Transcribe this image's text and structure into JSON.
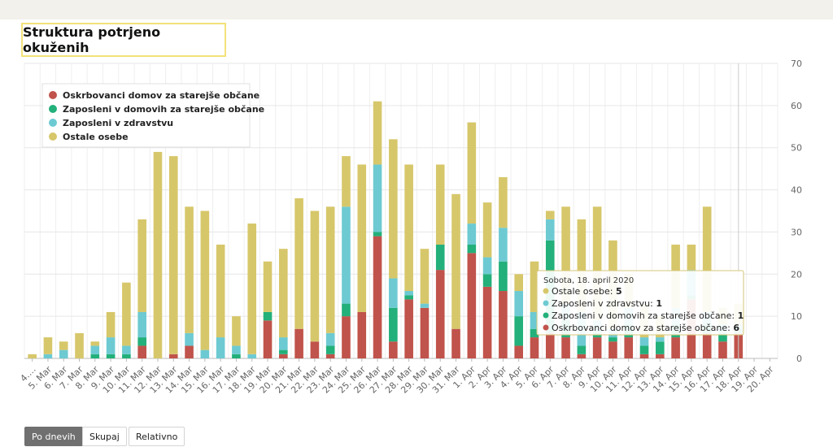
{
  "title": "Struktura potrjeno okuženih",
  "buttons": [
    "Po dnevih",
    "Skupaj",
    "Relativno"
  ],
  "active_button": 0,
  "colors": {
    "oskrbovanci": "#c0534b",
    "zaposleni_domovi": "#23b07a",
    "zdravstvo": "#6dcad2",
    "ostale": "#d7c76b",
    "title_border": "#f2e27a"
  },
  "chart_data": {
    "type": "bar",
    "stacked": true,
    "categories": [
      "4. Mar",
      "5. Mar",
      "6. Mar",
      "7. Mar",
      "8. Mar",
      "9. Mar",
      "10. Mar",
      "11. Mar",
      "12. Mar",
      "13. Mar",
      "14. Mar",
      "15. Mar",
      "16. Mar",
      "17. Mar",
      "18. Mar",
      "19. Mar",
      "20. Mar",
      "21. Mar",
      "22. Mar",
      "23. Mar",
      "24. Mar",
      "25. Mar",
      "26. Mar",
      "27. Mar",
      "28. Mar",
      "29. Mar",
      "30. Mar",
      "31. Mar",
      "1. Apr",
      "2. Apr",
      "3. Apr",
      "4. Apr",
      "5. Apr",
      "6. Apr",
      "7. Apr",
      "8. Apr",
      "9. Apr",
      "10. Apr",
      "11. Apr",
      "12. Apr",
      "13. Apr",
      "14. Apr",
      "15. Apr",
      "16. Apr",
      "17. Apr",
      "18. Apr",
      "19. Apr",
      "20. Apr"
    ],
    "tick_labels": [
      "4.…",
      "5. Mar",
      "6. Mar",
      "7. Mar",
      "8. Mar",
      "9. Mar",
      "10. Mar",
      "11. Mar",
      "12. Mar",
      "13. Mar",
      "14. Mar",
      "15. Mar",
      "16. Mar",
      "17. Mar",
      "18. Mar",
      "19. Mar",
      "20. Mar",
      "21. Mar",
      "22. Mar",
      "23. Mar",
      "24. Mar",
      "25. Mar",
      "26. Mar",
      "27. Mar",
      "28. Mar",
      "29. Mar",
      "30. Mar",
      "31. Mar",
      "1. Apr",
      "2. Apr",
      "3. Apr",
      "4. Apr",
      "5. Apr",
      "6. Apr",
      "7. Apr",
      "8. Apr",
      "9. Apr",
      "10. Apr",
      "11. Apr",
      "12. Apr",
      "13. Apr",
      "14. Apr",
      "15. Apr",
      "16. Apr",
      "17. Apr",
      "18. Apr",
      "19. Apr",
      "20. Apr"
    ],
    "series": [
      {
        "name": "Oskrbovanci domov za starejše občane",
        "color": "#c0534b",
        "values": [
          0,
          0,
          0,
          0,
          0,
          0,
          0,
          3,
          0,
          1,
          3,
          0,
          0,
          0,
          0,
          9,
          1,
          7,
          4,
          1,
          10,
          11,
          29,
          4,
          14,
          12,
          21,
          7,
          25,
          17,
          16,
          3,
          5,
          6,
          5,
          1,
          5,
          4,
          5,
          1,
          1,
          5,
          14,
          6,
          4,
          6,
          0,
          0
        ]
      },
      {
        "name": "Zaposleni v domovih za starejše občane",
        "color": "#23b07a",
        "values": [
          0,
          0,
          0,
          0,
          1,
          1,
          1,
          2,
          0,
          0,
          0,
          0,
          0,
          1,
          0,
          2,
          1,
          0,
          0,
          2,
          3,
          0,
          1,
          8,
          1,
          0,
          6,
          0,
          2,
          3,
          7,
          7,
          2,
          22,
          4,
          2,
          1,
          1,
          3,
          2,
          3,
          3,
          1,
          2,
          2,
          1,
          0,
          0
        ]
      },
      {
        "name": "Zaposleni v zdravstvu",
        "color": "#6dcad2",
        "values": [
          0,
          1,
          2,
          0,
          2,
          4,
          2,
          6,
          0,
          0,
          3,
          2,
          5,
          2,
          1,
          0,
          3,
          0,
          0,
          3,
          23,
          0,
          16,
          7,
          1,
          1,
          0,
          0,
          5,
          4,
          8,
          6,
          4,
          5,
          4,
          8,
          3,
          2,
          4,
          2,
          1,
          4,
          6,
          3,
          2,
          1,
          0,
          0
        ]
      },
      {
        "name": "Ostale osebe",
        "color": "#d7c76b",
        "values": [
          1,
          4,
          2,
          6,
          1,
          6,
          15,
          22,
          49,
          47,
          30,
          33,
          22,
          7,
          31,
          12,
          21,
          31,
          31,
          30,
          12,
          35,
          15,
          33,
          30,
          13,
          19,
          32,
          24,
          13,
          12,
          4,
          12,
          2,
          23,
          22,
          27,
          21,
          8,
          8,
          5,
          15,
          6,
          25,
          4,
          5,
          0,
          0
        ]
      }
    ],
    "ylim": [
      0,
      70
    ],
    "yticks": [
      0,
      10,
      20,
      30,
      40,
      50,
      60,
      70
    ],
    "grid": true,
    "legend": "top-left",
    "tooltip": {
      "header": "Sobota, 18. april 2020",
      "rows": [
        {
          "label": "Ostale osebe",
          "value": "5",
          "color": "#d7c76b"
        },
        {
          "label": "Zaposleni v zdravstvu",
          "value": "1",
          "color": "#6dcad2"
        },
        {
          "label": "Zaposleni v domovih za starejše občane",
          "value": "1",
          "color": "#23b07a"
        },
        {
          "label": "Oskrbovanci domov za starejše občane",
          "value": "6",
          "color": "#c0534b"
        }
      ]
    }
  }
}
